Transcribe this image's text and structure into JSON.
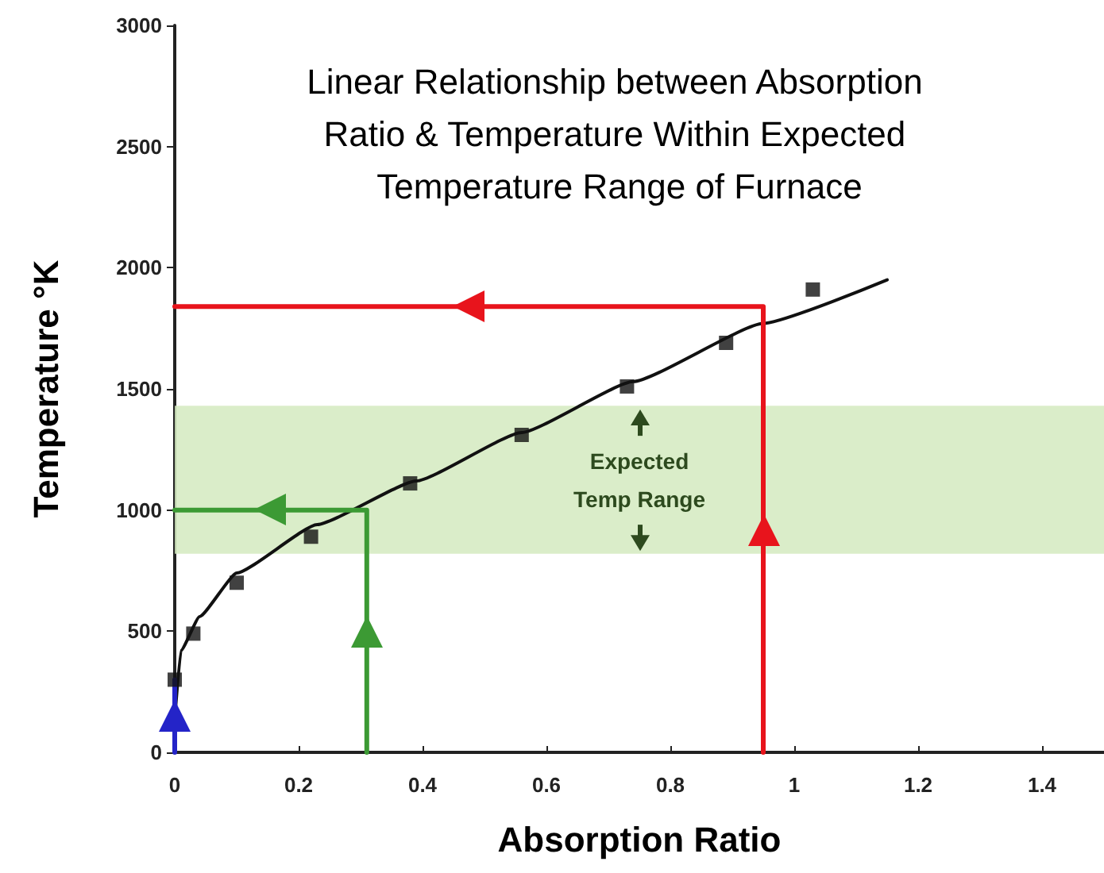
{
  "chart_data": {
    "type": "scatter",
    "title": "Linear Relationship between Absorption Ratio & Temperature Within Expected Temperature Range of Furnace",
    "xlabel": "Absorption Ratio",
    "ylabel": "Temperature °K",
    "series": [
      {
        "color": "#111111",
        "marker": "square",
        "x": [
          0,
          0.03,
          0.1,
          0.22,
          0.38,
          0.56,
          0.73,
          0.89,
          1.03
        ],
        "values": [
          300,
          490,
          700,
          890,
          1110,
          1310,
          1510,
          1690,
          1910
        ]
      },
      {
        "type": "line",
        "color": "#111111",
        "marker": "none",
        "x": [
          0,
          0.01,
          0.04,
          0.1,
          0.23,
          0.39,
          0.56,
          0.74,
          0.95,
          1.15
        ],
        "values": [
          140,
          420,
          560,
          740,
          940,
          1120,
          1320,
          1530,
          1770,
          1950
        ]
      },
      {
        "type": "line",
        "color": "#e8141c",
        "marker": "none",
        "x": [
          0.95,
          0.95,
          0
        ],
        "values": [
          0,
          1840,
          1840
        ]
      },
      {
        "type": "line",
        "color": "#3c9a34",
        "marker": "none",
        "x": [
          0.31,
          0.31,
          0
        ],
        "values": [
          0,
          1000,
          1000
        ]
      },
      {
        "type": "line",
        "color": "#2424c8",
        "marker": "none",
        "x": [
          0,
          0
        ],
        "values": [
          0,
          300
        ]
      }
    ],
    "bands": [
      {
        "axis": "y",
        "from": 820,
        "to": 1430,
        "label": "Expected\nTemp Range",
        "color": "#d3eabf"
      }
    ],
    "xlim": [
      0,
      1.5
    ],
    "xticks": [
      0,
      0.2,
      0.4,
      0.6,
      0.8,
      1,
      1.2,
      1.4
    ],
    "ylim": [
      0,
      3000
    ],
    "yticks": [
      0,
      500,
      1000,
      1500,
      2000,
      2500,
      3000
    ],
    "grid": false
  }
}
